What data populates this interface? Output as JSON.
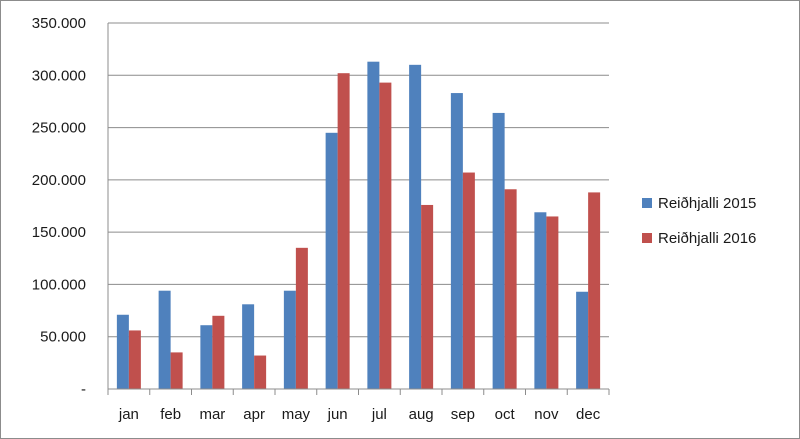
{
  "chart_data": {
    "type": "bar",
    "categories": [
      "jan",
      "feb",
      "mar",
      "apr",
      "may",
      "jun",
      "jul",
      "aug",
      "sep",
      "oct",
      "nov",
      "dec"
    ],
    "series": [
      {
        "name": "Reiðhjalli 2015",
        "color": "#4f81bd",
        "values": [
          71000,
          94000,
          61000,
          81000,
          94000,
          245000,
          313000,
          310000,
          283000,
          264000,
          169000,
          93000
        ]
      },
      {
        "name": "Reiðhjalli 2016",
        "color": "#c0504d",
        "values": [
          56000,
          35000,
          70000,
          32000,
          135000,
          302000,
          293000,
          176000,
          207000,
          191000,
          165000,
          188000
        ]
      }
    ],
    "ylim": [
      0,
      350000
    ],
    "yticks": [
      0,
      50000,
      100000,
      150000,
      200000,
      250000,
      300000,
      350000
    ],
    "ytick_labels": [
      "-",
      "50.000",
      "100.000",
      "150.000",
      "200.000",
      "250.000",
      "300.000",
      "350.000"
    ],
    "title": "",
    "xlabel": "",
    "ylabel": "",
    "grid": "horizontal",
    "legend_position": "right"
  }
}
